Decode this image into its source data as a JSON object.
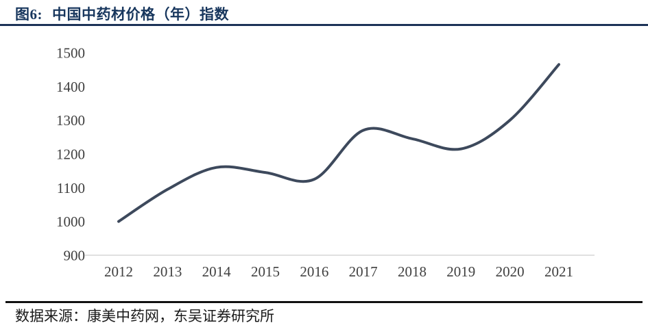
{
  "header": {
    "figure_label": "图6:",
    "title": "中国中药材价格（年）指数"
  },
  "footer": {
    "source": "数据来源：康美中药网，东吴证券研究所"
  },
  "colors": {
    "title_navy": "#17365D",
    "title_rule": "#1c3257",
    "line": "#3D495C",
    "axis_text": "#3f3f3f",
    "baseline": "#d6d6d6",
    "footer_rule": "#111111"
  },
  "chart_data": {
    "type": "line",
    "smooth": true,
    "title": "中国中药材价格（年）指数",
    "categories": [
      "2012",
      "2013",
      "2014",
      "2015",
      "2016",
      "2017",
      "2018",
      "2019",
      "2020",
      "2021"
    ],
    "series": [
      {
        "name": "中国中药材价格（年）指数",
        "values": [
          1000,
          1095,
          1160,
          1145,
          1125,
          1270,
          1245,
          1215,
          1300,
          1465
        ]
      }
    ],
    "xlabel": "",
    "ylabel": "",
    "ylim": [
      900,
      1500
    ],
    "yticks": [
      900,
      1000,
      1100,
      1200,
      1300,
      1400,
      1500
    ],
    "grid": false,
    "legend_position": "none"
  }
}
